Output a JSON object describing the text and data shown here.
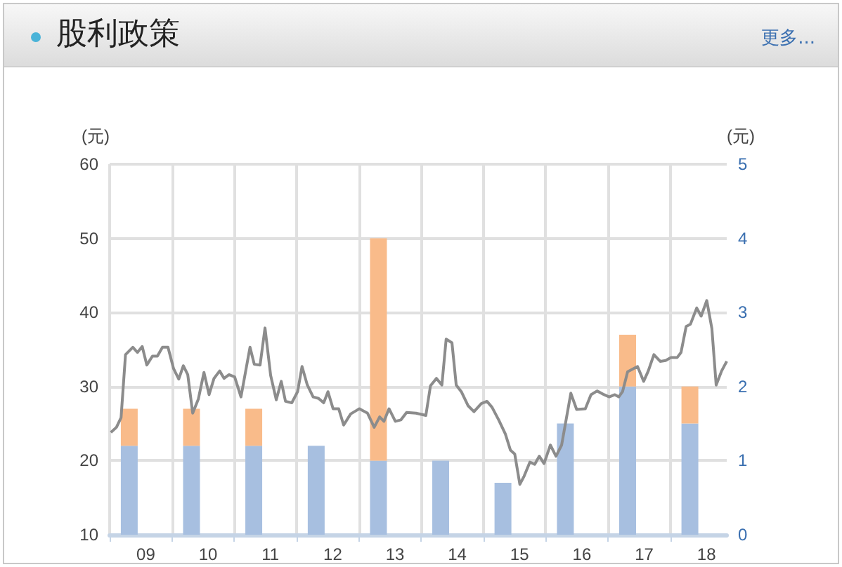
{
  "chart_data": {
    "type": "bar",
    "title": "股利政策",
    "annotations": [
      "更多..."
    ],
    "ylabel": "(元)",
    "y2label": "(元)",
    "xlim": [
      "2009-01-01",
      "2018-11-28"
    ],
    "xticks": [
      {
        "value": "2009-01-01",
        "label": null
      },
      {
        "value": "2009-08-01",
        "label": "09"
      },
      {
        "value": "2010-01-01",
        "label": null
      },
      {
        "value": "2010-08-01",
        "label": "10"
      },
      {
        "value": "2011-01-01",
        "label": null
      },
      {
        "value": "2011-08-01",
        "label": "11"
      },
      {
        "value": "2012-01-01",
        "label": null
      },
      {
        "value": "2012-08-01",
        "label": "12"
      },
      {
        "value": "2013-01-01",
        "label": null
      },
      {
        "value": "2013-08-01",
        "label": "13"
      },
      {
        "value": "2014-01-01",
        "label": null
      },
      {
        "value": "2014-08-01",
        "label": "14"
      },
      {
        "value": "2015-01-01",
        "label": null
      },
      {
        "value": "2015-08-01",
        "label": "15"
      },
      {
        "value": "2016-01-01",
        "label": null
      },
      {
        "value": "2016-08-01",
        "label": "16"
      },
      {
        "value": "2017-01-01",
        "label": null
      },
      {
        "value": "2017-08-01",
        "label": "17"
      },
      {
        "value": "2018-01-01",
        "label": null
      },
      {
        "value": "2018-08-01",
        "label": "18"
      }
    ],
    "stacked": true,
    "grid": true,
    "ylim": [
      10,
      60
    ],
    "yticks": [
      10,
      20,
      30,
      40,
      50,
      60
    ],
    "y2lim": [
      0,
      5
    ],
    "y2ticks": [
      0,
      1,
      2,
      3,
      4,
      5
    ],
    "series": [
      {
        "axis": "y2",
        "color": "#a7bfe0",
        "x": [
          "2009-04-26",
          "2010-04-26",
          "2011-04-26",
          "2012-04-26",
          "2013-04-26",
          "2014-04-26",
          "2015-04-26",
          "2016-04-26",
          "2017-04-26",
          "2018-04-26"
        ],
        "values": [
          1.2,
          1.2,
          1.2,
          1.2,
          1.0,
          1.0,
          0.7,
          1.5,
          2.0,
          1.5
        ]
      },
      {
        "axis": "y2",
        "color": "#f9bb8a",
        "x": [
          "2009-04-26",
          "2010-04-26",
          "2011-04-26",
          "2012-04-26",
          "2013-04-26",
          "2014-04-26",
          "2015-04-26",
          "2016-04-26",
          "2017-04-26",
          "2018-04-26"
        ],
        "values": [
          0.5,
          0.5,
          0.5,
          null,
          3.0,
          null,
          null,
          null,
          0.7,
          0.5
        ]
      },
      {
        "type": "line",
        "axis": "y",
        "color": "#8c8c8c",
        "marker": "none",
        "x": [
          "2009-01-08",
          "2009-02-10",
          "2009-03-09",
          "2009-04-04",
          "2009-05-17",
          "2009-06-13",
          "2009-07-11",
          "2009-08-07",
          "2009-09-09",
          "2009-10-08",
          "2009-11-07",
          "2009-12-09",
          "2010-01-11",
          "2010-02-10",
          "2010-03-09",
          "2010-04-04",
          "2010-05-03",
          "2010-06-05",
          "2010-07-08",
          "2010-08-07",
          "2010-09-05",
          "2010-10-08",
          "2010-11-03",
          "2010-12-02",
          "2011-01-04",
          "2011-02-10",
          "2011-04-04",
          "2011-04-29",
          "2011-06-02",
          "2011-07-01",
          "2011-08-03",
          "2011-09-05",
          "2011-10-04",
          "2011-10-29",
          "2011-12-05",
          "2012-01-08",
          "2012-02-03",
          "2012-03-05",
          "2012-04-08",
          "2012-05-10",
          "2012-06-09",
          "2012-07-04",
          "2012-08-03",
          "2012-09-05",
          "2012-10-04",
          "2012-11-14",
          "2013-01-04",
          "2013-02-21",
          "2013-04-01",
          "2013-05-03",
          "2013-05-28",
          "2013-06-27",
          "2013-08-03",
          "2013-09-05",
          "2013-10-08",
          "2013-12-02",
          "2014-01-29",
          "2014-02-25",
          "2014-04-01",
          "2014-05-03",
          "2014-05-28",
          "2014-07-01",
          "2014-07-26",
          "2014-08-25",
          "2014-10-04",
          "2014-11-07",
          "2014-12-20",
          "2015-01-22",
          "2015-02-21",
          "2015-04-01",
          "2015-05-10",
          "2015-06-09",
          "2015-07-04",
          "2015-08-03",
          "2015-08-28",
          "2015-10-01",
          "2015-10-29",
          "2015-11-25",
          "2015-12-23",
          "2016-01-29",
          "2016-03-02",
          "2016-04-04",
          "2016-05-28",
          "2016-07-01",
          "2016-08-21",
          "2016-09-23",
          "2016-10-29",
          "2016-12-09",
          "2017-01-08",
          "2017-02-10",
          "2017-03-05",
          "2017-03-27",
          "2017-04-26",
          "2017-06-23",
          "2017-07-29",
          "2017-08-25",
          "2017-09-27",
          "2017-11-03",
          "2017-12-05",
          "2018-01-04",
          "2018-02-10",
          "2018-03-05",
          "2018-04-04",
          "2018-04-29",
          "2018-06-05",
          "2018-07-01",
          "2018-08-03",
          "2018-09-02",
          "2018-09-27",
          "2018-10-29",
          "2018-11-28"
        ],
        "values": [
          23.8,
          24.5,
          25.8,
          34.3,
          35.3,
          34.6,
          35.4,
          32.9,
          34.1,
          34.1,
          35.3,
          35.3,
          32.4,
          31.0,
          32.8,
          31.6,
          26.4,
          28.3,
          31.9,
          28.9,
          31.1,
          32.1,
          31.1,
          31.6,
          31.3,
          28.6,
          35.3,
          33.0,
          32.9,
          37.9,
          31.5,
          28.2,
          30.7,
          28.0,
          27.8,
          29.3,
          32.7,
          30.2,
          28.6,
          28.4,
          27.8,
          29.3,
          27.0,
          27.0,
          24.8,
          26.3,
          27.0,
          26.4,
          24.5,
          25.9,
          25.3,
          27.0,
          25.3,
          25.5,
          26.5,
          26.4,
          26.1,
          30.1,
          31.1,
          30.2,
          36.4,
          35.9,
          30.2,
          29.3,
          27.4,
          26.6,
          27.7,
          28.0,
          27.2,
          25.5,
          23.6,
          21.4,
          20.9,
          16.8,
          17.9,
          19.8,
          19.5,
          20.6,
          19.6,
          22.1,
          20.6,
          22.1,
          29.1,
          26.9,
          27.0,
          28.9,
          29.4,
          28.9,
          28.6,
          28.9,
          28.6,
          29.3,
          32.0,
          32.7,
          30.7,
          32.1,
          34.3,
          33.4,
          33.5,
          33.9,
          33.9,
          34.6,
          38.1,
          38.4,
          40.6,
          39.5,
          41.6,
          37.8,
          30.2,
          32.1,
          33.4
        ]
      }
    ]
  }
}
